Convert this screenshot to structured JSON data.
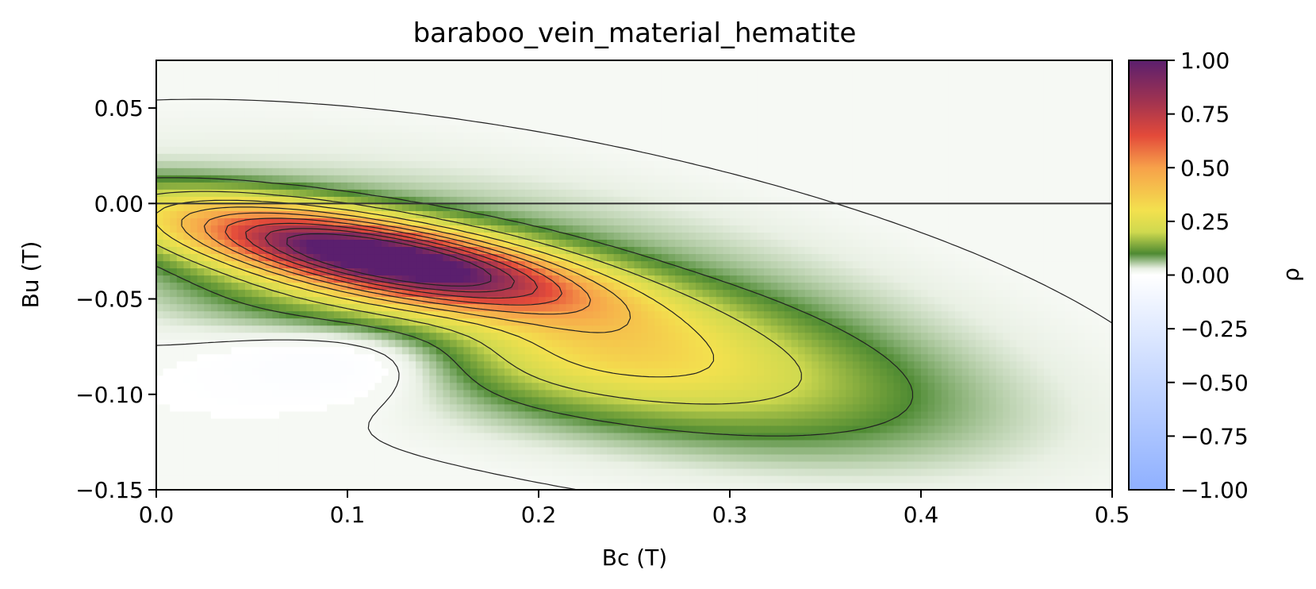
{
  "chart_data": {
    "type": "heatmap",
    "title": "baraboo_vein_material_hematite",
    "xlabel": "Bc (T)",
    "ylabel": "Bu (T)",
    "colorbar_label": "ρ",
    "xlim": [
      0.0,
      0.5
    ],
    "ylim": [
      -0.15,
      0.075
    ],
    "x_ticks": [
      0.0,
      0.1,
      0.2,
      0.3,
      0.4,
      0.5
    ],
    "x_tick_labels": [
      "0.0",
      "0.1",
      "0.2",
      "0.3",
      "0.4",
      "0.5"
    ],
    "y_ticks": [
      0.05,
      0.0,
      -0.05,
      -0.1,
      -0.15
    ],
    "y_tick_labels": [
      "0.05",
      "0.00",
      "−0.05",
      "−0.10",
      "−0.15"
    ],
    "colorbar_range": [
      -1.0,
      1.0
    ],
    "colorbar_ticks": [
      1.0,
      0.75,
      0.5,
      0.25,
      0.0,
      -0.25,
      -0.5,
      -0.75,
      -1.0
    ],
    "colorbar_tick_labels": [
      "1.00",
      "0.75",
      "0.50",
      "0.25",
      "0.00",
      "−0.25",
      "−0.50",
      "−0.75",
      "−1.00"
    ],
    "colormap": [
      {
        "value": -1.0,
        "color": "#8fb0ff"
      },
      {
        "value": -0.5,
        "color": "#c4d6ff"
      },
      {
        "value": -0.2,
        "color": "#e6eeff"
      },
      {
        "value": 0.0,
        "color": "#ffffff"
      },
      {
        "value": 0.03,
        "color": "#e9f0e4"
      },
      {
        "value": 0.1,
        "color": "#4e8a32"
      },
      {
        "value": 0.2,
        "color": "#cfd94f"
      },
      {
        "value": 0.3,
        "color": "#f3e14e"
      },
      {
        "value": 0.5,
        "color": "#f7a14a"
      },
      {
        "value": 0.65,
        "color": "#e34a3a"
      },
      {
        "value": 0.8,
        "color": "#a4344f"
      },
      {
        "value": 1.0,
        "color": "#5b1f6e"
      }
    ],
    "reference_line_y": 0.0,
    "peak": {
      "bc": 0.115,
      "bu": -0.027,
      "rho": 1.0
    },
    "negative_lobe_min": {
      "bc": 0.135,
      "bu": -0.07,
      "rho": -0.15
    },
    "contour_levels_positive": [
      0.1,
      0.2,
      0.3,
      0.4,
      0.5,
      0.6,
      0.7,
      0.8,
      0.9
    ],
    "contour_levels_negative": [
      -0.05,
      -0.1,
      -0.15
    ]
  }
}
